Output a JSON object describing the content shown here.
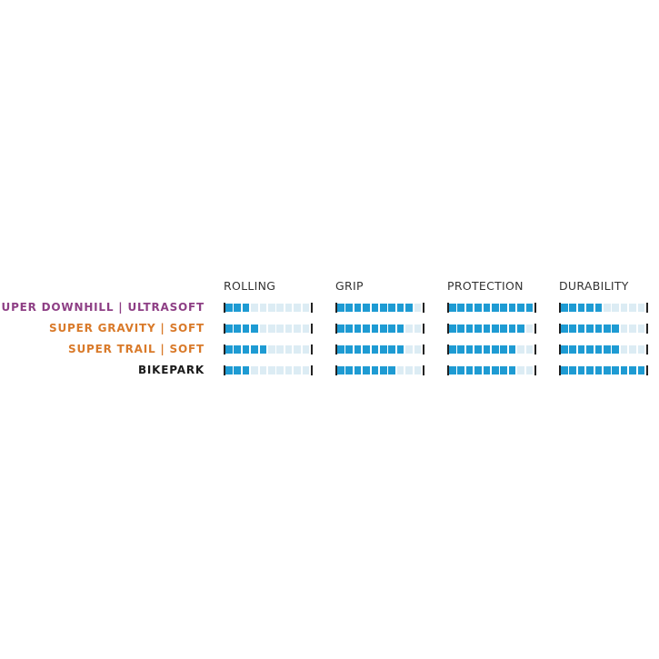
{
  "chart_data": {
    "type": "table",
    "scale_max": 10,
    "columns": [
      "ROLLING",
      "GRIP",
      "PROTECTION",
      "DURABILITY"
    ],
    "rows": [
      {
        "label": "SUPER DOWNHILL | ULTRASOFT",
        "color": "#8e3f85",
        "values": [
          3,
          9,
          10,
          5
        ]
      },
      {
        "label": "SUPER GRAVITY | SOFT",
        "color": "#d97a2a",
        "values": [
          4,
          8,
          9,
          7
        ]
      },
      {
        "label": "SUPER TRAIL | SOFT",
        "color": "#d97a2a",
        "values": [
          5,
          8,
          8,
          7
        ]
      },
      {
        "label": "BIKEPARK",
        "color": "#1a1a1a",
        "values": [
          3,
          7,
          8,
          10
        ]
      }
    ],
    "colors": {
      "filled": "#1e9bd3",
      "empty": "#dcecf4",
      "tick": "#222222"
    }
  }
}
